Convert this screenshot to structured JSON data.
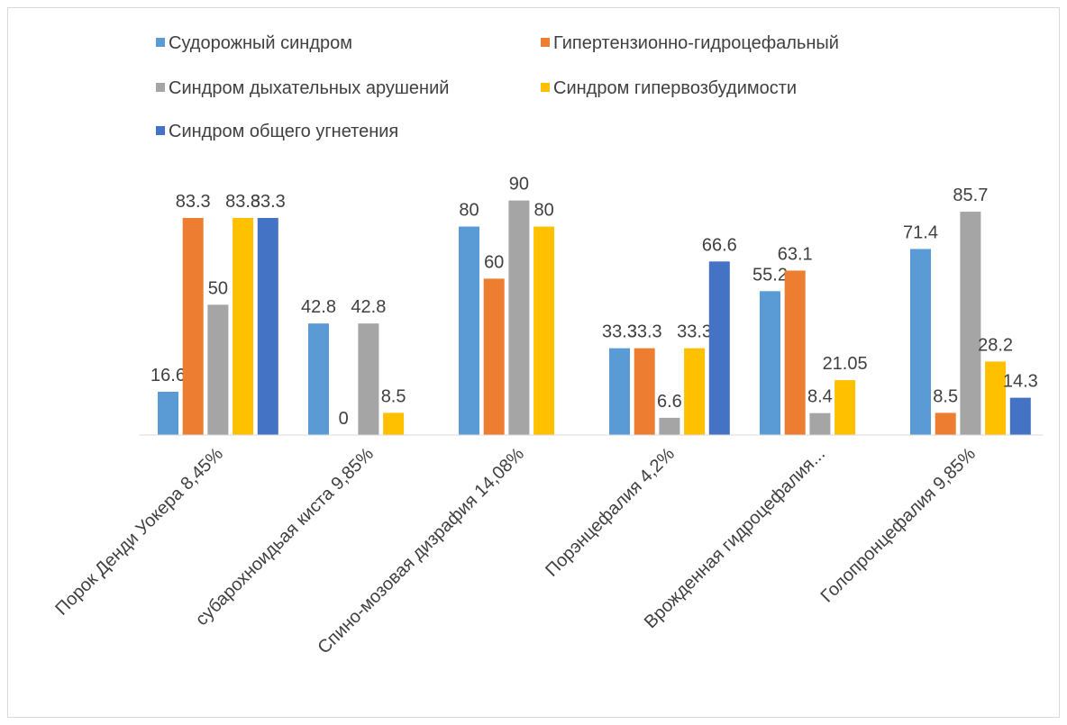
{
  "chart_data": {
    "type": "bar",
    "categories": [
      "Порок Денди Уокера 8,45%",
      "субарохноидьая киста 9,85%",
      "Спино-мозовая дизрафия 14,08%",
      "Порэнцефалия 4,2%",
      "Врожденная гидроцефалия...",
      "Голопронцефалия 9,85%"
    ],
    "series": [
      {
        "name": "Судорожный синдром",
        "color": "#5b9bd5",
        "values": [
          16.6,
          42.8,
          80,
          33.3,
          55.2,
          71.4
        ]
      },
      {
        "name": "Гипертензионно-гидроцефальный",
        "color": "#ed7d31",
        "values": [
          83.3,
          0,
          60,
          33.3,
          63.1,
          8.5
        ]
      },
      {
        "name": "Синдром дыхательных арушений",
        "color": "#a5a5a5",
        "values": [
          50,
          42.8,
          90,
          6.6,
          8.4,
          85.7
        ]
      },
      {
        "name": "Синдром гипервозбудимости",
        "color": "#ffc000",
        "values": [
          83.3,
          8.5,
          80,
          33.3,
          21.05,
          28.2
        ]
      },
      {
        "name": "Синдром общего угнетения",
        "color": "#4472c4",
        "values": [
          83.3,
          null,
          null,
          66.6,
          null,
          14.3
        ]
      }
    ],
    "legend": "top"
  }
}
